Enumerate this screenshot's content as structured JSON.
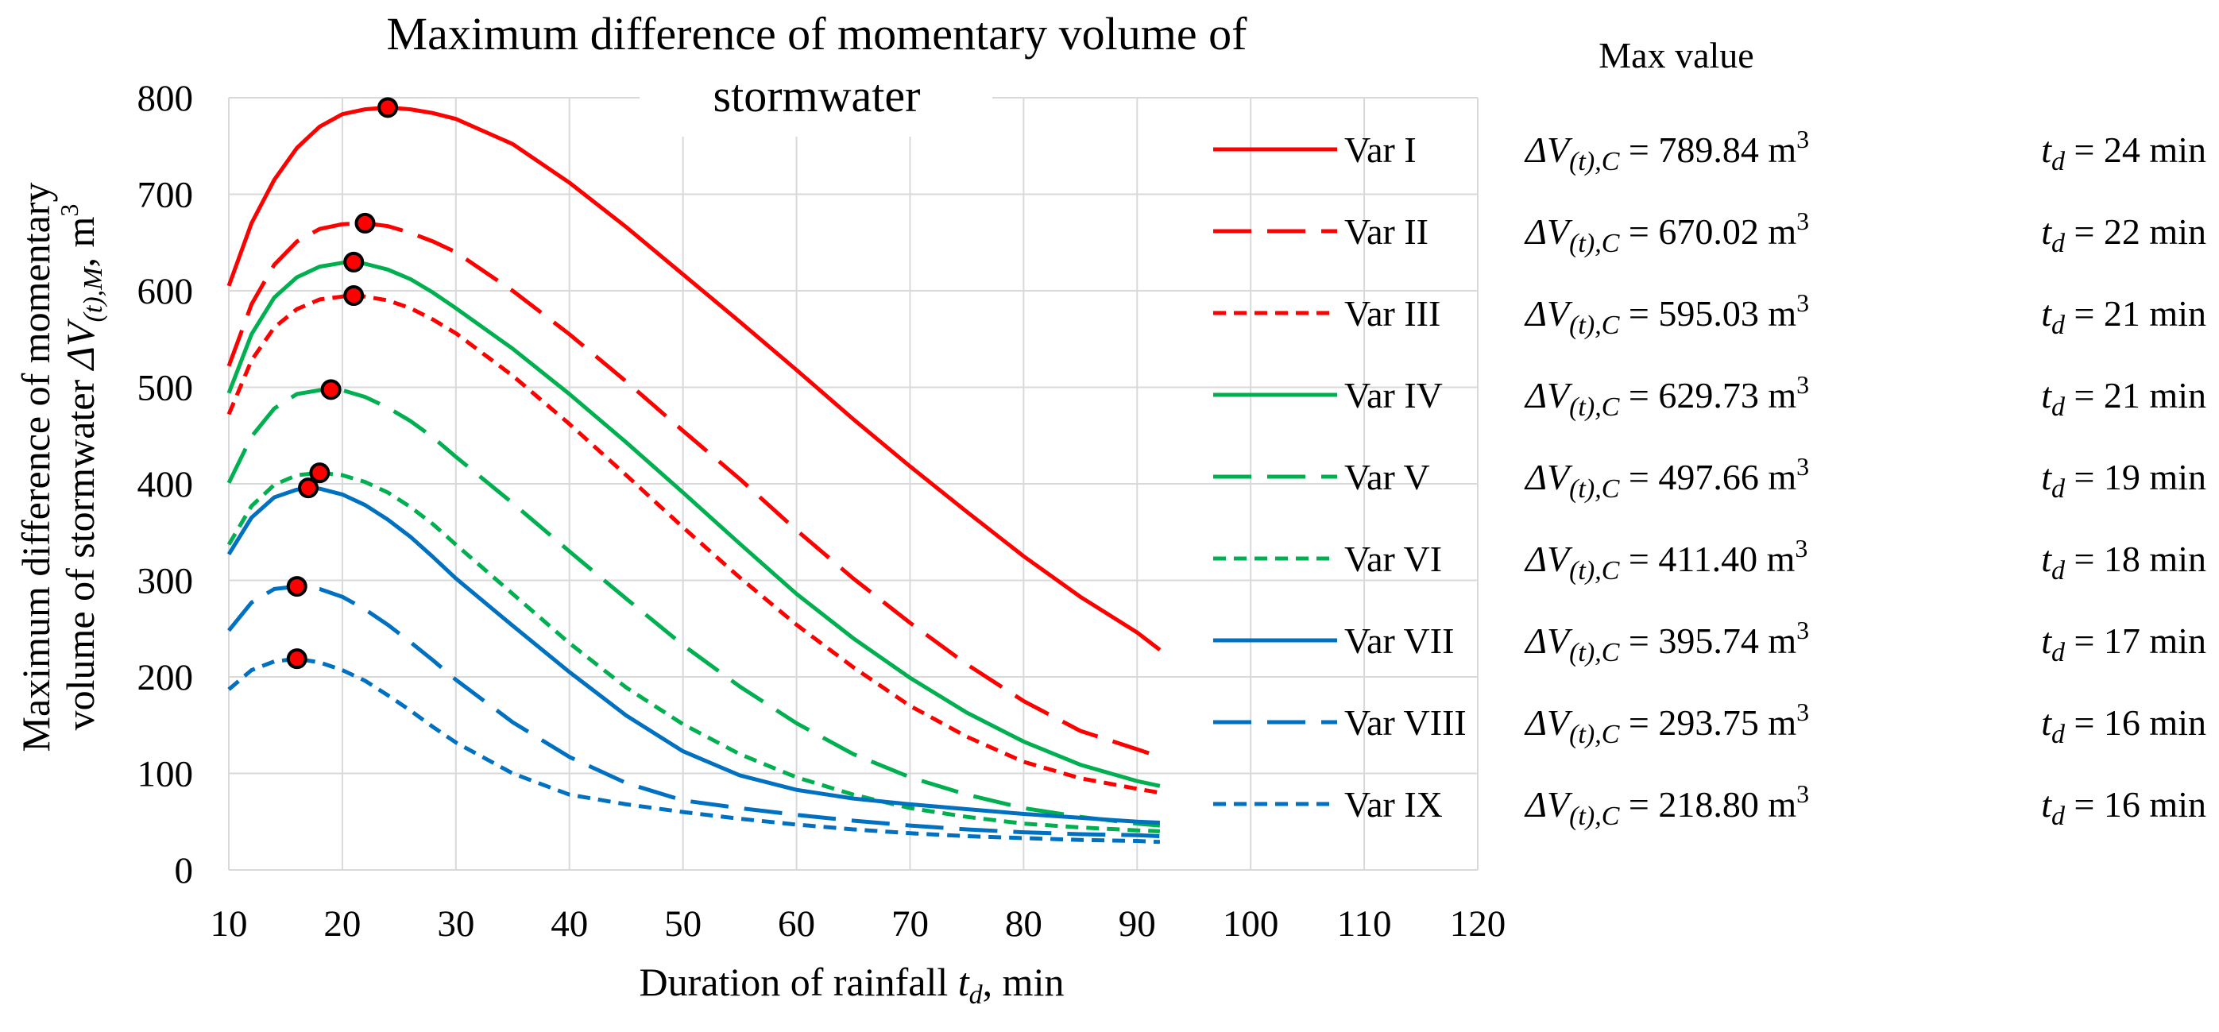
{
  "chart_data": {
    "type": "line",
    "title": "Maximum difference of momentary volume of stormwater",
    "xlabel": {
      "main": "Duration of rainfall ",
      "sym": "t",
      "sub": "d",
      "unit": ", min"
    },
    "ylabel": {
      "line1": "Maximum difference of momentary",
      "line2_pre": "volume of stormwater ",
      "line2_sym": "ΔV",
      "line2_sub": "(t),M",
      "line2_unit": ", m",
      "line2_sup": "3"
    },
    "xlim": [
      10,
      120
    ],
    "ylim": [
      0,
      800
    ],
    "xticks": [
      10,
      20,
      30,
      40,
      50,
      60,
      70,
      80,
      90,
      100,
      110,
      120
    ],
    "yticks": [
      0,
      100,
      200,
      300,
      400,
      500,
      600,
      700,
      800
    ],
    "grid": true,
    "max_header": "Max value",
    "series": [
      {
        "name": "Var I",
        "color": "#ff0000",
        "dash": "solid",
        "x": [
          10,
          12,
          14,
          16,
          18,
          20,
          22,
          24,
          26,
          28,
          30,
          35,
          40,
          45,
          50,
          55,
          60,
          65,
          70,
          75,
          80,
          85,
          90,
          92
        ],
        "y": [
          605,
          670,
          715,
          748,
          770,
          783,
          788,
          789.84,
          788,
          784,
          778,
          752,
          712,
          666,
          617,
          568,
          518,
          467,
          418,
          371,
          325,
          283,
          246,
          228
        ],
        "peak_x": 24,
        "peak_y": 789.84,
        "dv": "789.84",
        "td": "24"
      },
      {
        "name": "Var II",
        "color": "#ff0000",
        "dash": "long",
        "x": [
          10,
          12,
          14,
          16,
          18,
          20,
          22,
          24,
          26,
          28,
          30,
          35,
          40,
          45,
          50,
          55,
          60,
          65,
          70,
          75,
          80,
          85,
          90,
          92
        ],
        "y": [
          522,
          586,
          627,
          651,
          664,
          669,
          670.02,
          667,
          660,
          651,
          640,
          600,
          555,
          506,
          455,
          405,
          352,
          302,
          256,
          213,
          175,
          144,
          125,
          117
        ],
        "peak_x": 22,
        "peak_y": 670.02,
        "dv": "670.02",
        "td": "22"
      },
      {
        "name": "Var III",
        "color": "#ff0000",
        "dash": "short",
        "x": [
          10,
          12,
          14,
          16,
          18,
          20,
          21,
          22,
          24,
          26,
          28,
          30,
          35,
          40,
          45,
          50,
          55,
          60,
          65,
          70,
          75,
          80,
          85,
          90,
          92
        ],
        "y": [
          472,
          528,
          562,
          581,
          591,
          594,
          595.03,
          594,
          590,
          582,
          570,
          556,
          512,
          462,
          409,
          355,
          303,
          254,
          210,
          170,
          138,
          112,
          95,
          84,
          80
        ],
        "peak_x": 21,
        "peak_y": 595.03,
        "dv": "595.03",
        "td": "21"
      },
      {
        "name": "Var IV",
        "color": "#00b050",
        "dash": "solid",
        "x": [
          10,
          12,
          14,
          16,
          18,
          20,
          21,
          22,
          24,
          26,
          28,
          30,
          35,
          40,
          45,
          50,
          55,
          60,
          65,
          70,
          75,
          80,
          85,
          90,
          92
        ],
        "y": [
          494,
          555,
          593,
          614,
          625,
          629,
          629.73,
          628,
          622,
          612,
          598,
          582,
          540,
          493,
          443,
          391,
          338,
          286,
          240,
          199,
          163,
          133,
          109,
          92,
          87
        ],
        "peak_x": 21,
        "peak_y": 629.73,
        "dv": "629.73",
        "td": "21"
      },
      {
        "name": "Var V",
        "color": "#00b050",
        "dash": "long",
        "x": [
          10,
          12,
          14,
          16,
          18,
          19,
          20,
          22,
          24,
          26,
          28,
          30,
          35,
          40,
          45,
          50,
          55,
          60,
          65,
          70,
          75,
          80,
          85,
          90,
          92
        ],
        "y": [
          401,
          449,
          478,
          493,
          497,
          497.66,
          497,
          490,
          479,
          465,
          448,
          428,
          380,
          330,
          281,
          233,
          190,
          152,
          120,
          96,
          78,
          64,
          55,
          48,
          46
        ],
        "peak_x": 19,
        "peak_y": 497.66,
        "dv": "497.66",
        "td": "19"
      },
      {
        "name": "Var VI",
        "color": "#00b050",
        "dash": "short",
        "x": [
          10,
          12,
          14,
          16,
          18,
          20,
          22,
          24,
          26,
          28,
          30,
          35,
          40,
          45,
          50,
          55,
          60,
          65,
          70,
          75,
          80,
          85,
          90,
          92
        ],
        "y": [
          337,
          377,
          399,
          409,
          411.4,
          409,
          402,
          391,
          376,
          358,
          337,
          286,
          235,
          189,
          151,
          120,
          96,
          78,
          64,
          55,
          48,
          44,
          41,
          40
        ],
        "peak_x": 18,
        "peak_y": 411.4,
        "dv": "411.40",
        "td": "18"
      },
      {
        "name": "Var VII",
        "color": "#0070c0",
        "dash": "solid",
        "x": [
          10,
          12,
          14,
          16,
          17,
          18,
          20,
          22,
          24,
          26,
          28,
          30,
          35,
          40,
          45,
          50,
          55,
          60,
          65,
          70,
          75,
          80,
          85,
          90,
          92
        ],
        "y": [
          327,
          365,
          386,
          394,
          395.74,
          395,
          389,
          378,
          363,
          345,
          324,
          302,
          253,
          205,
          160,
          123,
          98,
          83,
          74,
          68,
          63,
          58,
          54,
          50,
          49
        ],
        "peak_x": 17,
        "peak_y": 395.74,
        "dv": "395.74",
        "td": "17"
      },
      {
        "name": "Var VIII",
        "color": "#0070c0",
        "dash": "long",
        "x": [
          10,
          12,
          14,
          16,
          18,
          20,
          22,
          24,
          26,
          28,
          30,
          35,
          40,
          45,
          50,
          55,
          60,
          65,
          70,
          75,
          80,
          85,
          90,
          92
        ],
        "y": [
          248,
          277,
          291,
          293.75,
          291,
          283,
          270,
          254,
          236,
          217,
          197,
          153,
          117,
          90,
          72,
          64,
          57,
          51,
          46,
          42,
          39,
          37,
          36,
          35
        ],
        "peak_x": 16,
        "peak_y": 293.75,
        "dv": "293.75",
        "td": "16"
      },
      {
        "name": "Var IX",
        "color": "#0070c0",
        "dash": "short",
        "x": [
          10,
          12,
          14,
          16,
          18,
          20,
          22,
          24,
          26,
          28,
          30,
          35,
          40,
          45,
          50,
          55,
          60,
          65,
          70,
          75,
          80,
          85,
          90,
          92
        ],
        "y": [
          187,
          207,
          216,
          218.8,
          215,
          207,
          196,
          181,
          165,
          148,
          132,
          100,
          78,
          68,
          60,
          53,
          47,
          42,
          38,
          35,
          33,
          31,
          30,
          29
        ],
        "peak_x": 16,
        "peak_y": 218.8,
        "dv": "218.80",
        "td": "16"
      }
    ]
  }
}
